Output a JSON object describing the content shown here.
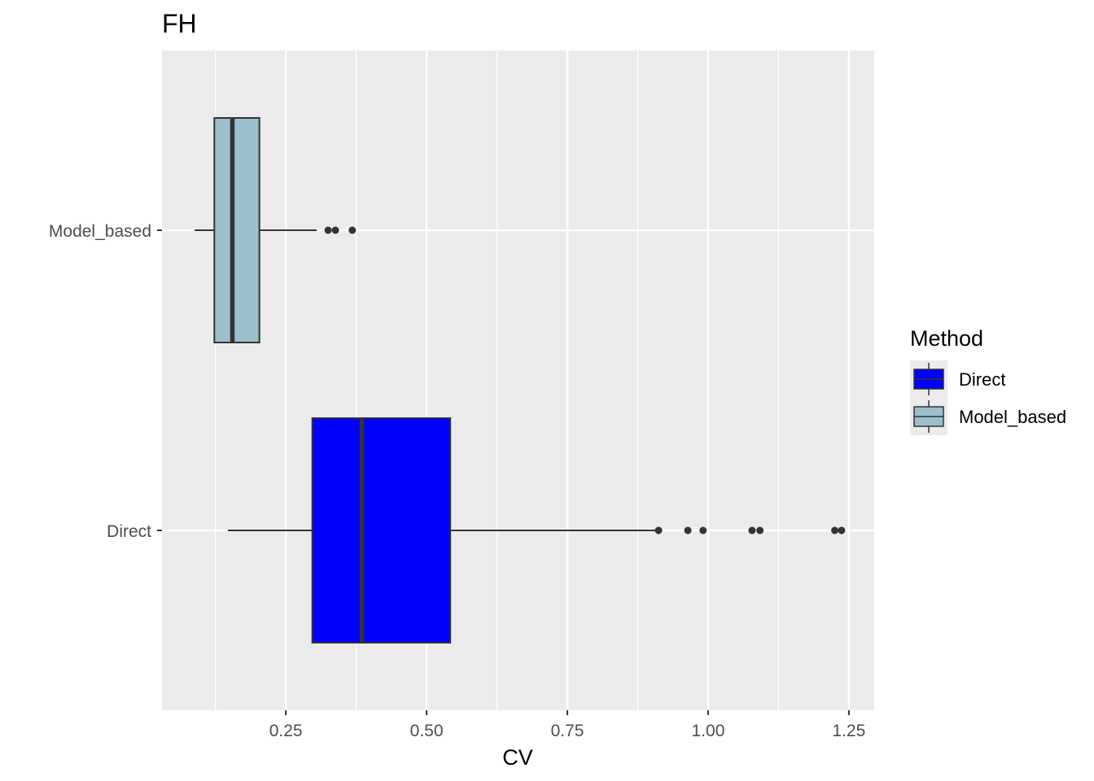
{
  "chart_data": {
    "type": "boxplot",
    "orientation": "horizontal",
    "title": "FH",
    "xlabel": "CV",
    "ylabel": "",
    "xlim": [
      0.03,
      1.295
    ],
    "x_ticks": [
      0.25,
      0.5,
      0.75,
      1.0,
      1.25
    ],
    "x_tick_labels": [
      "0.25",
      "0.50",
      "0.75",
      "1.00",
      "1.25"
    ],
    "categories": [
      "Model_based",
      "Direct"
    ],
    "series": [
      {
        "name": "Model_based",
        "color": "#9bbfcc",
        "whisker_low": 0.088,
        "q1": 0.123,
        "median": 0.155,
        "q3": 0.203,
        "whisker_high": 0.305,
        "outliers": [
          0.325,
          0.338,
          0.368
        ]
      },
      {
        "name": "Direct",
        "color": "#0000ff",
        "whisker_low": 0.147,
        "q1": 0.297,
        "median": 0.385,
        "q3": 0.542,
        "whisker_high": 0.912,
        "outliers": [
          0.912,
          0.964,
          0.991,
          1.078,
          1.092,
          1.225,
          1.237
        ]
      }
    ],
    "grid": true,
    "legend": {
      "title": "Method",
      "position": "right",
      "entries": [
        {
          "label": "Direct",
          "color": "#0000ff"
        },
        {
          "label": "Model_based",
          "color": "#9bbfcc"
        }
      ]
    },
    "colors": {
      "panel_background": "#ebebeb",
      "grid_major": "#ffffff",
      "box_outline": "#333333"
    }
  }
}
